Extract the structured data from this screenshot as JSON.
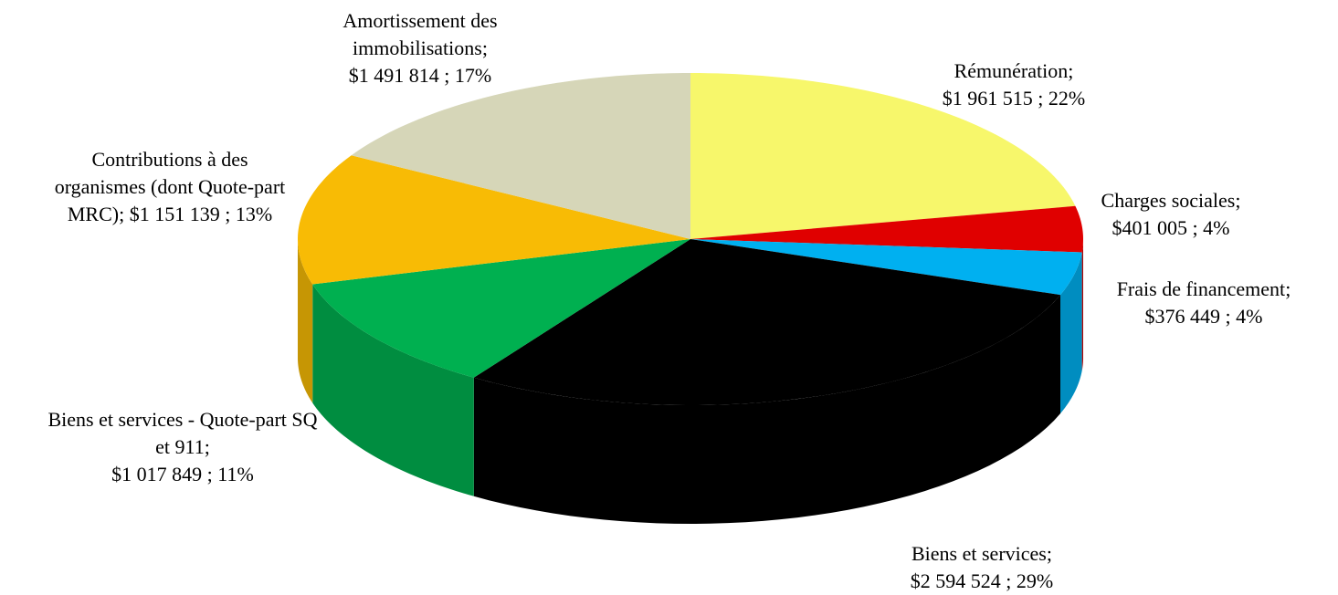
{
  "chart_data": {
    "type": "pie",
    "categories": [
      "Rémunération",
      "Charges sociales",
      "Frais de financement",
      "Biens et services",
      "Biens et services - Quote-part SQ et 911",
      "Contributions à des organismes (dont Quote-part MRC)",
      "Amortissement des immobilisations"
    ],
    "values": [
      1961515,
      401005,
      376449,
      2594524,
      1017849,
      1151139,
      1491814
    ],
    "value_labels": [
      "$1 961 515",
      "$401 005",
      "$376 449",
      "$2 594 524",
      "$1 017 849",
      "$1 151 139",
      "$1 491 814"
    ],
    "percents": [
      22,
      4,
      4,
      29,
      11,
      13,
      17
    ],
    "percent_labels": [
      "22%",
      "4%",
      "4%",
      "29%",
      "11%",
      "13%",
      "17%"
    ],
    "label_separator": ";",
    "colors": [
      "#f7f76b",
      "#e00000",
      "#00b0f0",
      "#000000",
      "#00b050",
      "#f8bb05",
      "#d6d6b8"
    ]
  }
}
